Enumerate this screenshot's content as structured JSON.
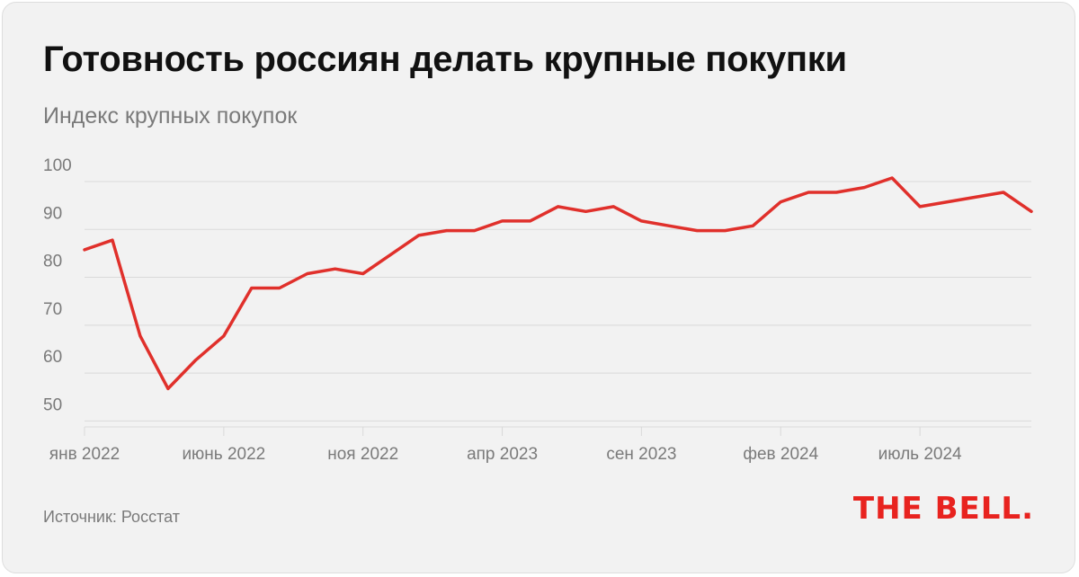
{
  "title": "Готовность россиян делать крупные покупки",
  "subtitle": "Индекс крупных покупок",
  "source": "Источник: Росстат",
  "logo": "THE BELL.",
  "colors": {
    "line": "#e0302b",
    "grid": "#d9d9d9",
    "text": "#7a7a7a",
    "background": "#f2f2f2"
  },
  "chart_data": {
    "type": "line",
    "title": "Готовность россиян делать крупные покупки",
    "subtitle": "Индекс крупных покупок",
    "ylim": [
      45,
      100
    ],
    "y_ticks": [
      50,
      60,
      70,
      80,
      90,
      100
    ],
    "grid": true,
    "x_tick_labels": [
      {
        "label": "янв 2022",
        "date": "2022-01"
      },
      {
        "label": "июнь 2022",
        "date": "2022-06"
      },
      {
        "label": "ноя 2022",
        "date": "2022-11"
      },
      {
        "label": "апр 2023",
        "date": "2023-04"
      },
      {
        "label": "сен 2023",
        "date": "2023-09"
      },
      {
        "label": "фев 2024",
        "date": "2024-02"
      },
      {
        "label": "июль 2024",
        "date": "2024-07"
      }
    ],
    "series": [
      {
        "points": [
          {
            "x": "2022-01",
            "y": 82
          },
          {
            "x": "2022-02",
            "y": 84
          },
          {
            "x": "2022-03",
            "y": 64
          },
          {
            "x": "2022-04",
            "y": 53
          },
          {
            "x": "2022-05",
            "y": 59
          },
          {
            "x": "2022-06",
            "y": 64
          },
          {
            "x": "2022-07",
            "y": 74
          },
          {
            "x": "2022-08",
            "y": 74
          },
          {
            "x": "2022-09",
            "y": 77
          },
          {
            "x": "2022-10",
            "y": 78
          },
          {
            "x": "2022-11",
            "y": 77
          },
          {
            "x": "2022-12",
            "y": 81
          },
          {
            "x": "2023-01",
            "y": 85
          },
          {
            "x": "2023-02",
            "y": 86
          },
          {
            "x": "2023-03",
            "y": 86
          },
          {
            "x": "2023-04",
            "y": 88
          },
          {
            "x": "2023-05",
            "y": 88
          },
          {
            "x": "2023-06",
            "y": 91
          },
          {
            "x": "2023-07",
            "y": 90
          },
          {
            "x": "2023-08",
            "y": 91
          },
          {
            "x": "2023-09",
            "y": 88
          },
          {
            "x": "2023-10",
            "y": 87
          },
          {
            "x": "2023-11",
            "y": 86
          },
          {
            "x": "2023-12",
            "y": 86
          },
          {
            "x": "2024-01",
            "y": 87
          },
          {
            "x": "2024-02",
            "y": 92
          },
          {
            "x": "2024-03",
            "y": 94
          },
          {
            "x": "2024-04",
            "y": 94
          },
          {
            "x": "2024-05",
            "y": 95
          },
          {
            "x": "2024-06",
            "y": 97
          },
          {
            "x": "2024-07",
            "y": 91
          },
          {
            "x": "2024-10",
            "y": 94
          },
          {
            "x": "2024-11",
            "y": 90
          }
        ]
      }
    ]
  }
}
